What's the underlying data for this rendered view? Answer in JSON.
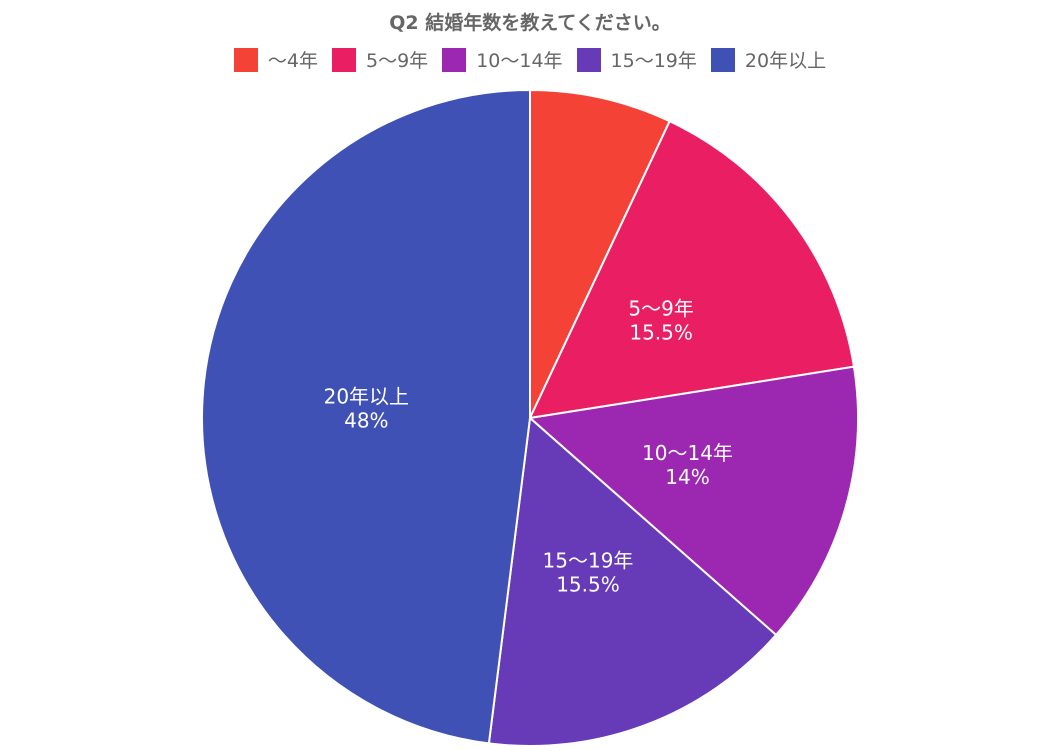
{
  "chart_data": {
    "type": "pie",
    "title": "Q2 結婚年数を教えてください。",
    "legend_position": "top",
    "slices": [
      {
        "label": "〜4年",
        "value": 7,
        "color": "#f44336",
        "show_label": false
      },
      {
        "label": "5〜9年",
        "value": 15.5,
        "value_label": "15.5%",
        "color": "#e91e63",
        "show_label": true
      },
      {
        "label": "10〜14年",
        "value": 14,
        "value_label": "14%",
        "color": "#9c27b0",
        "show_label": true
      },
      {
        "label": "15〜19年",
        "value": 15.5,
        "value_label": "15.5%",
        "color": "#673ab7",
        "show_label": true
      },
      {
        "label": "20年以上",
        "value": 48,
        "value_label": "48%",
        "color": "#3f51b5",
        "show_label": true
      }
    ]
  }
}
